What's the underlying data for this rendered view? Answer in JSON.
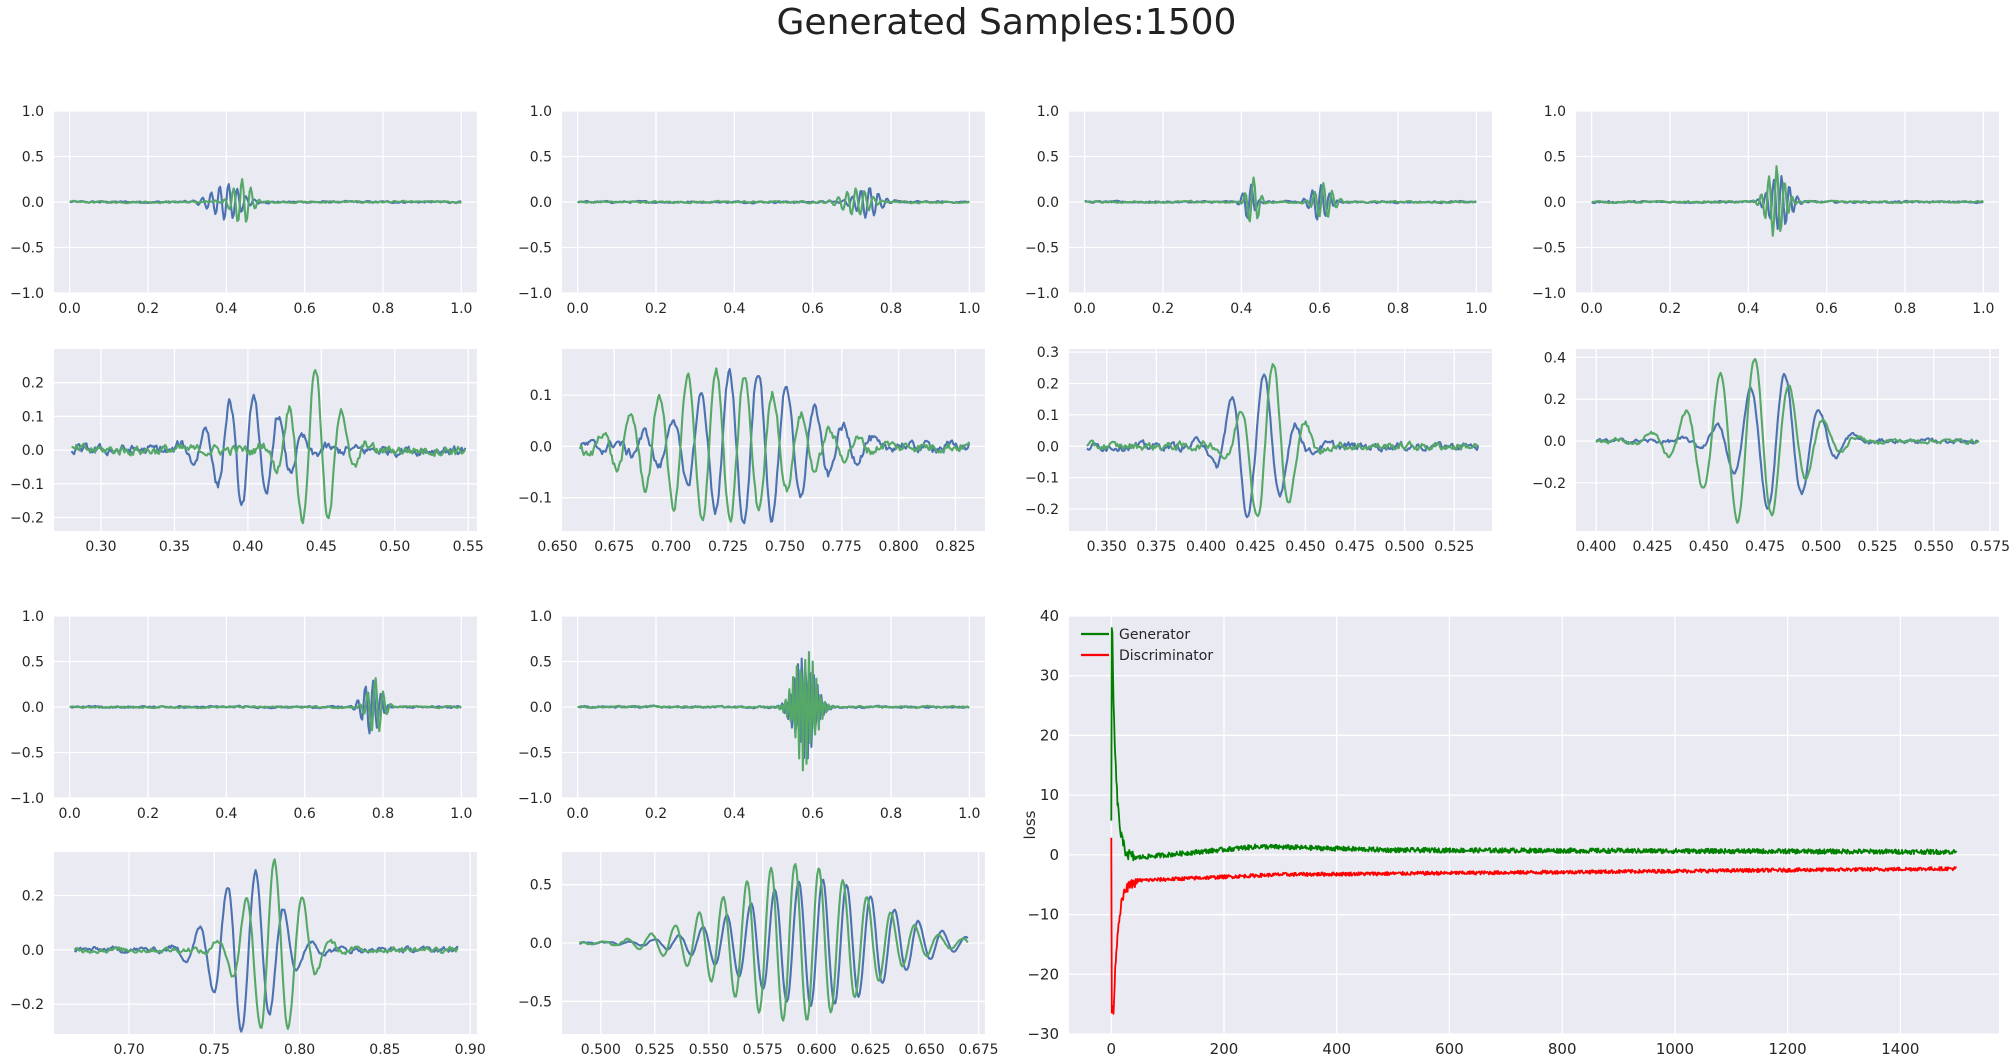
{
  "title": "Generated Samples:1500",
  "colors": {
    "background": "#eaeaf2",
    "grid": "#ffffff",
    "tick_text": "#262626",
    "blue": "#4c72b0",
    "green": "#55a868",
    "generator": "#008000",
    "discriminator": "#ff0000"
  },
  "chart_data": [
    {
      "type": "line",
      "panel": "A1",
      "xlim": [
        -0.04,
        1.04
      ],
      "ylim": [
        -1.0,
        1.0
      ],
      "xticks": [
        0.0,
        0.2,
        0.4,
        0.6,
        0.8,
        1.0
      ],
      "xticklabels": [
        "0.0",
        "0.2",
        "0.4",
        "0.6",
        "0.8",
        "1.0"
      ],
      "yticks": [
        -1.0,
        -0.5,
        0.0,
        0.5,
        1.0
      ],
      "yticklabels": [
        "−1.0",
        "−0.5",
        "0.0",
        "0.5",
        "1.0"
      ],
      "series": [
        {
          "color": "blue",
          "packets": [
            {
              "center": 0.4,
              "width": 0.05,
              "amp": 0.2,
              "freq": 45,
              "phase": 0
            }
          ],
          "noise": 0.02,
          "x": [
            0.0,
            1.0
          ]
        },
        {
          "color": "green",
          "packets": [
            {
              "center": 0.44,
              "width": 0.03,
              "amp": 0.26,
              "freq": 45,
              "phase": 1.5
            }
          ],
          "noise": 0.02,
          "x": [
            0.0,
            1.0
          ]
        }
      ]
    },
    {
      "type": "line",
      "panel": "A2",
      "xlim": [
        -0.04,
        1.04
      ],
      "ylim": [
        -1.0,
        1.0
      ],
      "xticks": [
        0.0,
        0.2,
        0.4,
        0.6,
        0.8,
        1.0
      ],
      "xticklabels": [
        "0.0",
        "0.2",
        "0.4",
        "0.6",
        "0.8",
        "1.0"
      ],
      "yticks": [
        -1.0,
        -0.5,
        0.0,
        0.5,
        1.0
      ],
      "yticklabels": [
        "−1.0",
        "−0.5",
        "0.0",
        "0.5",
        "1.0"
      ],
      "series": [
        {
          "color": "blue",
          "packets": [
            {
              "center": 0.74,
              "width": 0.04,
              "amp": 0.17,
              "freq": 45,
              "phase": 0
            }
          ],
          "noise": 0.02,
          "x": [
            0.0,
            1.0
          ]
        },
        {
          "color": "green",
          "packets": [
            {
              "center": 0.71,
              "width": 0.045,
              "amp": 0.15,
              "freq": 45,
              "phase": 1.5
            }
          ],
          "noise": 0.02,
          "x": [
            0.0,
            1.0
          ]
        }
      ]
    },
    {
      "type": "line",
      "panel": "A3",
      "xlim": [
        -0.04,
        1.04
      ],
      "ylim": [
        -1.0,
        1.0
      ],
      "xticks": [
        0.0,
        0.2,
        0.4,
        0.6,
        0.8,
        1.0
      ],
      "xticklabels": [
        "0.0",
        "0.2",
        "0.4",
        "0.6",
        "0.8",
        "1.0"
      ],
      "yticks": [
        -1.0,
        -0.5,
        0.0,
        0.5,
        1.0
      ],
      "yticklabels": [
        "−1.0",
        "−0.5",
        "0.0",
        "0.5",
        "1.0"
      ],
      "series": [
        {
          "color": "blue",
          "packets": [
            {
              "center": 0.42,
              "width": 0.02,
              "amp": 0.2,
              "freq": 45,
              "phase": 0
            },
            {
              "center": 0.6,
              "width": 0.03,
              "amp": 0.2,
              "freq": 45,
              "phase": 0.5
            }
          ],
          "noise": 0.02,
          "x": [
            0.0,
            1.0
          ]
        },
        {
          "color": "green",
          "packets": [
            {
              "center": 0.43,
              "width": 0.02,
              "amp": 0.27,
              "freq": 45,
              "phase": 1.2
            },
            {
              "center": 0.61,
              "width": 0.03,
              "amp": 0.2,
              "freq": 45,
              "phase": 1.7
            }
          ],
          "noise": 0.02,
          "x": [
            0.0,
            1.0
          ]
        }
      ]
    },
    {
      "type": "line",
      "panel": "A4",
      "xlim": [
        -0.04,
        1.04
      ],
      "ylim": [
        -1.0,
        1.0
      ],
      "xticks": [
        0.0,
        0.2,
        0.4,
        0.6,
        0.8,
        1.0
      ],
      "xticklabels": [
        "0.0",
        "0.2",
        "0.4",
        "0.6",
        "0.8",
        "1.0"
      ],
      "yticks": [
        -1.0,
        -0.5,
        0.0,
        0.5,
        1.0
      ],
      "yticklabels": [
        "−1.0",
        "−0.5",
        "0.0",
        "0.5",
        "1.0"
      ],
      "series": [
        {
          "color": "blue",
          "packets": [
            {
              "center": 0.48,
              "width": 0.035,
              "amp": 0.3,
              "freq": 50,
              "phase": 0
            }
          ],
          "noise": 0.02,
          "x": [
            0.0,
            1.0
          ]
        },
        {
          "color": "green",
          "packets": [
            {
              "center": 0.47,
              "width": 0.03,
              "amp": 0.4,
              "freq": 50,
              "phase": 0.8
            }
          ],
          "noise": 0.02,
          "x": [
            0.0,
            1.0
          ]
        }
      ]
    },
    {
      "type": "line",
      "panel": "B1",
      "xlim": [
        0.268,
        0.556
      ],
      "ylim": [
        -0.24,
        0.3
      ],
      "xticks": [
        0.3,
        0.35,
        0.4,
        0.45,
        0.5,
        0.55
      ],
      "xticklabels": [
        "0.30",
        "0.35",
        "0.40",
        "0.45",
        "0.50",
        "0.55"
      ],
      "yticks": [
        -0.2,
        -0.1,
        0.0,
        0.1,
        0.2
      ],
      "yticklabels": [
        "−0.2",
        "−0.1",
        "0.0",
        "0.1",
        "0.2"
      ],
      "series": [
        {
          "color": "blue",
          "packets": [
            {
              "center": 0.4,
              "width": 0.03,
              "amp": 0.17,
              "freq": 60,
              "phase": 0
            }
          ],
          "noise": 0.03,
          "x": [
            0.28,
            0.548
          ]
        },
        {
          "color": "green",
          "packets": [
            {
              "center": 0.446,
              "width": 0.022,
              "amp": 0.25,
              "freq": 55,
              "phase": 1.6
            }
          ],
          "noise": 0.03,
          "x": [
            0.28,
            0.548
          ]
        }
      ]
    },
    {
      "type": "line",
      "panel": "B2",
      "xlim": [
        0.652,
        0.838
      ],
      "ylim": [
        -0.165,
        0.19
      ],
      "xticks": [
        0.65,
        0.675,
        0.7,
        0.725,
        0.75,
        0.775,
        0.8,
        0.825
      ],
      "xticklabels": [
        "0.650",
        "0.675",
        "0.700",
        "0.725",
        "0.750",
        "0.775",
        "0.800",
        "0.825"
      ],
      "yticks": [
        -0.1,
        0.0,
        0.1
      ],
      "yticklabels": [
        "−0.1",
        "0.0",
        "0.1"
      ],
      "series": [
        {
          "color": "blue",
          "packets": [
            {
              "center": 0.735,
              "width": 0.035,
              "amp": 0.15,
              "freq": 80,
              "phase": 0
            }
          ],
          "noise": 0.02,
          "x": [
            0.66,
            0.831
          ]
        },
        {
          "color": "green",
          "packets": [
            {
              "center": 0.72,
              "width": 0.04,
              "amp": 0.15,
              "freq": 80,
              "phase": 1.7
            }
          ],
          "noise": 0.02,
          "x": [
            0.66,
            0.831
          ]
        }
      ]
    },
    {
      "type": "line",
      "panel": "B3",
      "xlim": [
        0.331,
        0.544
      ],
      "ylim": [
        -0.27,
        0.31
      ],
      "xticks": [
        0.35,
        0.375,
        0.4,
        0.425,
        0.45,
        0.475,
        0.5,
        0.525
      ],
      "xticklabels": [
        "0.350",
        "0.375",
        "0.400",
        "0.425",
        "0.450",
        "0.475",
        "0.500",
        "0.525"
      ],
      "yticks": [
        -0.2,
        -0.1,
        0.0,
        0.1,
        0.2,
        0.3
      ],
      "yticklabels": [
        "−0.2",
        "−0.1",
        "0.0",
        "0.1",
        "0.2",
        "0.3"
      ],
      "series": [
        {
          "color": "blue",
          "packets": [
            {
              "center": 0.425,
              "width": 0.018,
              "amp": 0.24,
              "freq": 60,
              "phase": 0
            }
          ],
          "noise": 0.025,
          "x": [
            0.34,
            0.537
          ]
        },
        {
          "color": "green",
          "packets": [
            {
              "center": 0.432,
              "width": 0.016,
              "amp": 0.27,
              "freq": 60,
              "phase": 0.9
            }
          ],
          "noise": 0.025,
          "x": [
            0.34,
            0.537
          ]
        }
      ]
    },
    {
      "type": "line",
      "panel": "B4",
      "xlim": [
        0.391,
        0.579
      ],
      "ylim": [
        -0.43,
        0.44
      ],
      "xticks": [
        0.4,
        0.425,
        0.45,
        0.475,
        0.5,
        0.525,
        0.55,
        0.575
      ],
      "xticklabels": [
        "0.400",
        "0.425",
        "0.450",
        "0.475",
        "0.500",
        "0.525",
        "0.550",
        "0.575"
      ],
      "yticks": [
        -0.2,
        0.0,
        0.2,
        0.4
      ],
      "yticklabels": [
        "−0.2",
        "0.0",
        "0.2",
        "0.4"
      ],
      "series": [
        {
          "color": "blue",
          "packets": [
            {
              "center": 0.48,
              "width": 0.022,
              "amp": 0.33,
              "freq": 65,
              "phase": 0
            }
          ],
          "noise": 0.02,
          "x": [
            0.4,
            0.57
          ]
        },
        {
          "color": "green",
          "packets": [
            {
              "center": 0.468,
              "width": 0.028,
              "amp": 0.4,
              "freq": 65,
              "phase": 0.6
            }
          ],
          "noise": 0.02,
          "x": [
            0.4,
            0.57
          ]
        }
      ]
    },
    {
      "type": "line",
      "panel": "C1",
      "xlim": [
        -0.04,
        1.04
      ],
      "ylim": [
        -1.0,
        1.0
      ],
      "xticks": [
        0.0,
        0.2,
        0.4,
        0.6,
        0.8,
        1.0
      ],
      "xticklabels": [
        "0.0",
        "0.2",
        "0.4",
        "0.6",
        "0.8",
        "1.0"
      ],
      "yticks": [
        -1.0,
        -0.5,
        0.0,
        0.5,
        1.0
      ],
      "yticklabels": [
        "−1.0",
        "−0.5",
        "0.0",
        "0.5",
        "1.0"
      ],
      "series": [
        {
          "color": "blue",
          "packets": [
            {
              "center": 0.77,
              "width": 0.03,
              "amp": 0.3,
              "freq": 50,
              "phase": 0
            }
          ],
          "noise": 0.02,
          "x": [
            0.0,
            1.0
          ]
        },
        {
          "color": "green",
          "packets": [
            {
              "center": 0.78,
              "width": 0.025,
              "amp": 0.32,
              "freq": 50,
              "phase": 1.4
            }
          ],
          "noise": 0.02,
          "x": [
            0.0,
            1.0
          ]
        }
      ]
    },
    {
      "type": "line",
      "panel": "C2",
      "xlim": [
        -0.04,
        1.04
      ],
      "ylim": [
        -1.0,
        1.0
      ],
      "xticks": [
        0.0,
        0.2,
        0.4,
        0.6,
        0.8,
        1.0
      ],
      "xticklabels": [
        "0.0",
        "0.2",
        "0.4",
        "0.6",
        "0.8",
        "1.0"
      ],
      "yticks": [
        -1.0,
        -0.5,
        0.0,
        0.5,
        1.0
      ],
      "yticklabels": [
        "−1.0",
        "−0.5",
        "0.0",
        "0.5",
        "1.0"
      ],
      "series": [
        {
          "color": "blue",
          "packets": [
            {
              "center": 0.58,
              "width": 0.035,
              "amp": 0.6,
              "freq": 100,
              "phase": 0
            }
          ],
          "noise": 0.02,
          "x": [
            0.0,
            1.0
          ]
        },
        {
          "color": "green",
          "packets": [
            {
              "center": 0.58,
              "width": 0.035,
              "amp": 0.7,
              "freq": 100,
              "phase": 1.5
            }
          ],
          "noise": 0.02,
          "x": [
            0.0,
            1.0
          ]
        }
      ]
    },
    {
      "type": "line",
      "panel": "D1",
      "xlim": [
        0.656,
        0.904
      ],
      "ylim": [
        -0.31,
        0.36
      ],
      "xticks": [
        0.7,
        0.75,
        0.8,
        0.85,
        0.9
      ],
      "xticklabels": [
        "0.70",
        "0.75",
        "0.80",
        "0.85",
        "0.90"
      ],
      "yticks": [
        -0.2,
        0.0,
        0.2
      ],
      "yticklabels": [
        "−0.2",
        "0.0",
        "0.2"
      ],
      "series": [
        {
          "color": "blue",
          "packets": [
            {
              "center": 0.77,
              "width": 0.025,
              "amp": 0.3,
              "freq": 60,
              "phase": 0
            }
          ],
          "noise": 0.02,
          "x": [
            0.668,
            0.893
          ]
        },
        {
          "color": "green",
          "packets": [
            {
              "center": 0.785,
              "width": 0.022,
              "amp": 0.33,
              "freq": 60,
              "phase": 1.5
            }
          ],
          "noise": 0.02,
          "x": [
            0.668,
            0.893
          ]
        }
      ]
    },
    {
      "type": "line",
      "panel": "D2",
      "xlim": [
        0.482,
        0.678
      ],
      "ylim": [
        -0.78,
        0.78
      ],
      "xticks": [
        0.5,
        0.525,
        0.55,
        0.575,
        0.6,
        0.625,
        0.65,
        0.675
      ],
      "xticklabels": [
        "0.500",
        "0.525",
        "0.550",
        "0.575",
        "0.600",
        "0.625",
        "0.650",
        "0.675"
      ],
      "yticks": [
        -0.5,
        0.0,
        0.5
      ],
      "yticklabels": [
        "−0.5",
        "0.0",
        "0.5"
      ],
      "series": [
        {
          "color": "blue",
          "packets": [
            {
              "center": 0.6,
              "width": 0.045,
              "amp": 0.55,
              "freq": 90,
              "phase": 0
            }
          ],
          "noise": 0.015,
          "x": [
            0.49,
            0.67
          ]
        },
        {
          "color": "green",
          "packets": [
            {
              "center": 0.59,
              "width": 0.045,
              "amp": 0.68,
              "freq": 90,
              "phase": 1.6
            }
          ],
          "noise": 0.015,
          "x": [
            0.49,
            0.67
          ]
        }
      ]
    },
    {
      "type": "line",
      "panel": "LOSS",
      "xlim": [
        -75,
        1575
      ],
      "ylim": [
        -30,
        40
      ],
      "xticks": [
        0,
        200,
        400,
        600,
        800,
        1000,
        1200,
        1400
      ],
      "xticklabels": [
        "0",
        "200",
        "400",
        "600",
        "800",
        "1000",
        "1200",
        "1400"
      ],
      "yticks": [
        -30,
        -20,
        -10,
        0,
        10,
        20,
        30,
        40
      ],
      "yticklabels": [
        "−30",
        "−20",
        "−10",
        "0",
        "10",
        "20",
        "30",
        "40"
      ],
      "ylabel": "loss",
      "legend": {
        "position": "top-left",
        "entries": [
          "Generator",
          "Discriminator"
        ]
      },
      "series": [
        {
          "name": "Generator",
          "color": "generator",
          "x_range": [
            0,
            1500
          ],
          "profile": "generator"
        },
        {
          "name": "Discriminator",
          "color": "discriminator",
          "x_range": [
            0,
            1500
          ],
          "profile": "discriminator"
        }
      ]
    }
  ]
}
